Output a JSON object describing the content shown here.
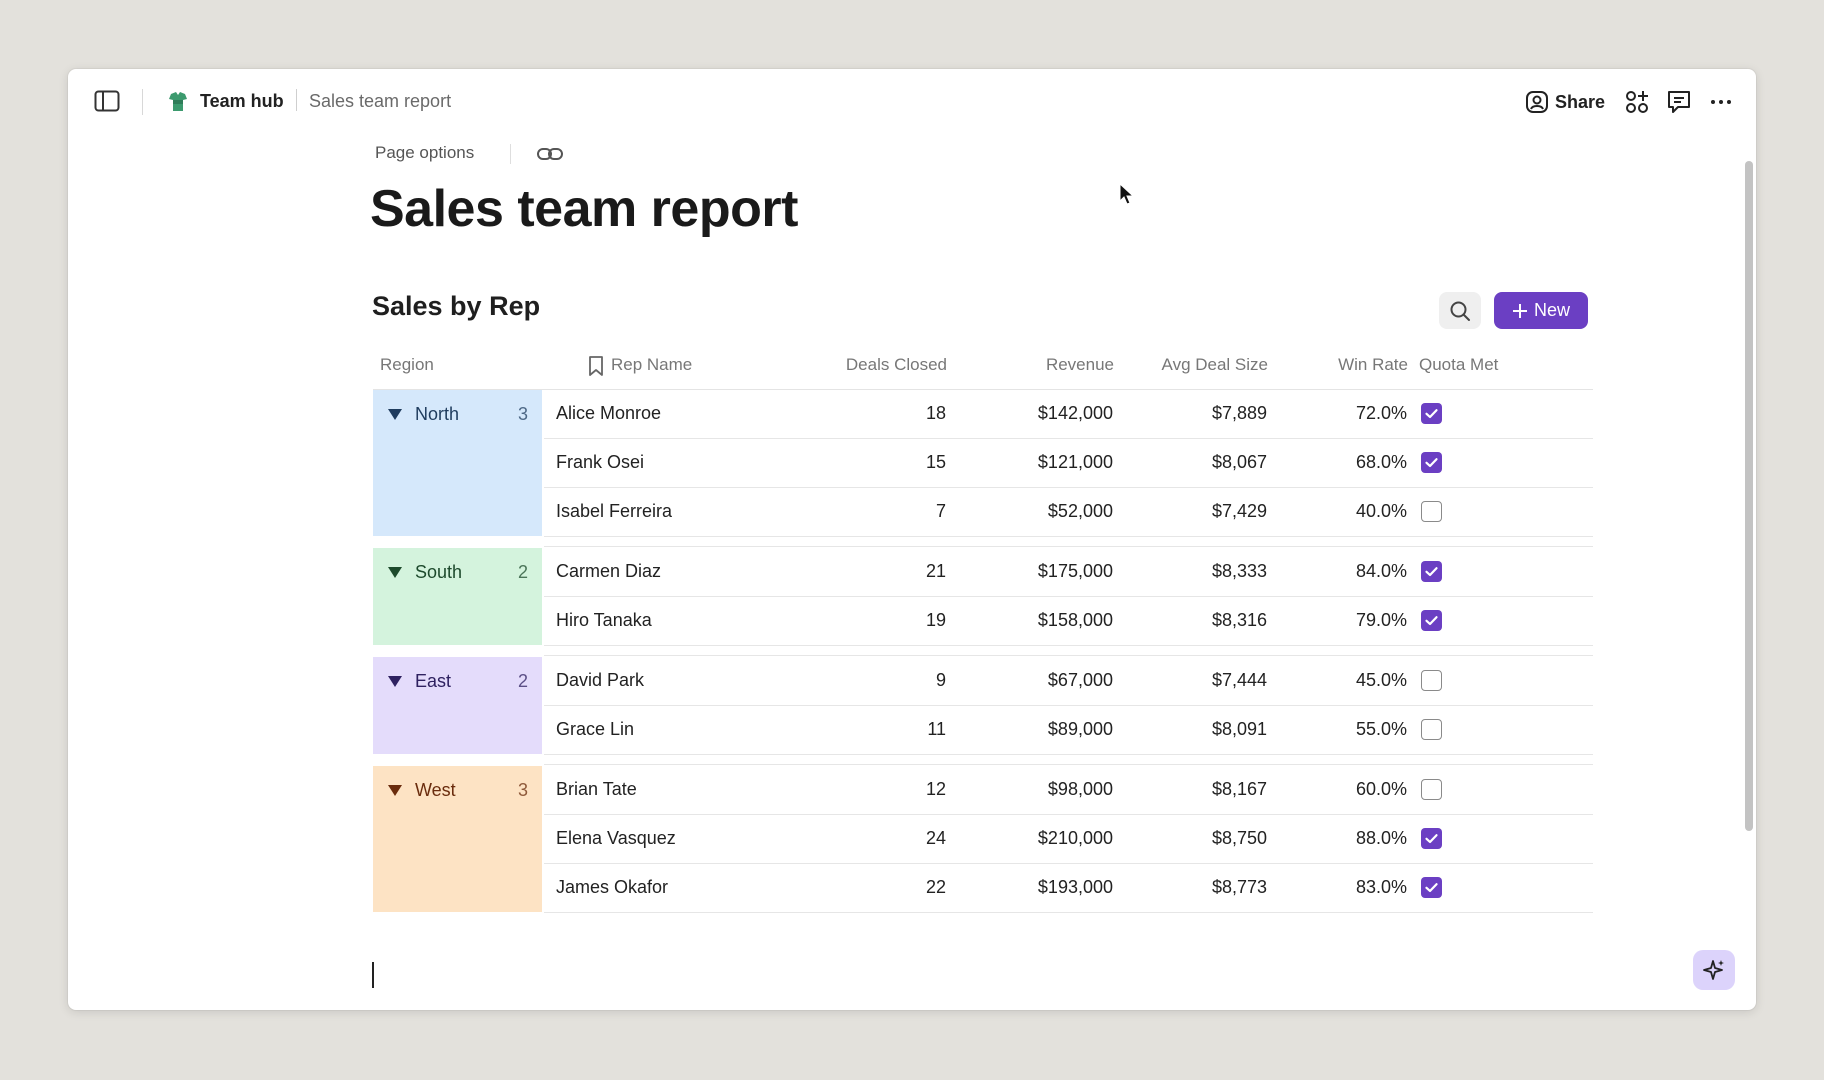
{
  "breadcrumb": {
    "hub": "Team hub",
    "page": "Sales team report"
  },
  "toolbar": {
    "share_label": "Share"
  },
  "page": {
    "options_label": "Page options",
    "title": "Sales team report"
  },
  "section": {
    "title": "Sales by Rep",
    "new_label": "New"
  },
  "columns": [
    "Region",
    "Rep Name",
    "Deals Closed",
    "Revenue",
    "Avg Deal Size",
    "Win Rate",
    "Quota Met"
  ],
  "groups": [
    {
      "region": "North",
      "count": "3",
      "bg": "#d5e8fb",
      "color": "#1f3c5e",
      "rows": [
        {
          "name": "Alice Monroe",
          "deals": "18",
          "revenue": "$142,000",
          "avg": "$7,889",
          "win": "72.0%",
          "quota": true
        },
        {
          "name": "Frank Osei",
          "deals": "15",
          "revenue": "$121,000",
          "avg": "$8,067",
          "win": "68.0%",
          "quota": true
        },
        {
          "name": "Isabel Ferreira",
          "deals": "7",
          "revenue": "$52,000",
          "avg": "$7,429",
          "win": "40.0%",
          "quota": false
        }
      ]
    },
    {
      "region": "South",
      "count": "2",
      "bg": "#d4f3dd",
      "color": "#1d4a2c",
      "rows": [
        {
          "name": "Carmen Diaz",
          "deals": "21",
          "revenue": "$175,000",
          "avg": "$8,333",
          "win": "84.0%",
          "quota": true
        },
        {
          "name": "Hiro Tanaka",
          "deals": "19",
          "revenue": "$158,000",
          "avg": "$8,316",
          "win": "79.0%",
          "quota": true
        }
      ]
    },
    {
      "region": "East",
      "count": "2",
      "bg": "#e4dcfb",
      "color": "#2e2160",
      "rows": [
        {
          "name": "David Park",
          "deals": "9",
          "revenue": "$67,000",
          "avg": "$7,444",
          "win": "45.0%",
          "quota": false
        },
        {
          "name": "Grace Lin",
          "deals": "11",
          "revenue": "$89,000",
          "avg": "$8,091",
          "win": "55.0%",
          "quota": false
        }
      ]
    },
    {
      "region": "West",
      "count": "3",
      "bg": "#fde3c4",
      "color": "#6a2c0d",
      "rows": [
        {
          "name": "Brian Tate",
          "deals": "12",
          "revenue": "$98,000",
          "avg": "$8,167",
          "win": "60.0%",
          "quota": false
        },
        {
          "name": "Elena Vasquez",
          "deals": "24",
          "revenue": "$210,000",
          "avg": "$8,750",
          "win": "88.0%",
          "quota": true
        },
        {
          "name": "James Okafor",
          "deals": "22",
          "revenue": "$193,000",
          "avg": "$8,773",
          "win": "83.0%",
          "quota": true
        }
      ]
    }
  ],
  "colors": {
    "accent": "#6b3fc3",
    "ai_button": "#dcd3fb"
  },
  "icons": [
    "sidebar-toggle-icon",
    "team-hub-logo-icon",
    "user-icon",
    "apps-icon",
    "comment-icon",
    "more-icon",
    "link-icon",
    "search-icon",
    "plus-icon",
    "sparkle-icon",
    "triangle-icon",
    "bookmark-icon",
    "check-icon"
  ]
}
